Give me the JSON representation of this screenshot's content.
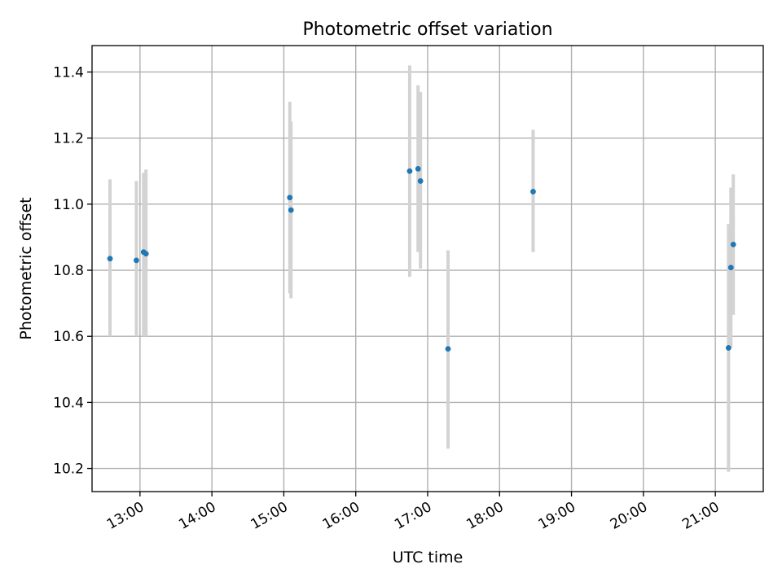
{
  "chart_data": {
    "type": "scatter",
    "title": "Photometric offset variation",
    "xlabel": "UTC time",
    "ylabel": "Photometric offset",
    "xlim": [
      "12:20",
      "21:40"
    ],
    "ylim": [
      10.13,
      11.48
    ],
    "x_tick_labels": [
      "13:00",
      "14:00",
      "15:00",
      "16:00",
      "17:00",
      "18:00",
      "19:00",
      "20:00",
      "21:00"
    ],
    "y_tick_labels": [
      "10.2",
      "10.4",
      "10.6",
      "10.8",
      "11.0",
      "11.2",
      "11.4"
    ],
    "grid": true,
    "colors": {
      "points": "#1f77b4",
      "error_bars": "#d3d3d3",
      "grid": "#b0b0b0"
    },
    "points": [
      {
        "x": "12:35",
        "y": 10.835,
        "err_low": 10.6,
        "err_high": 11.075
      },
      {
        "x": "12:57",
        "y": 10.83,
        "err_low": 10.6,
        "err_high": 11.07
      },
      {
        "x": "13:03",
        "y": 10.855,
        "err_low": 10.6,
        "err_high": 11.095
      },
      {
        "x": "13:05",
        "y": 10.85,
        "err_low": 10.6,
        "err_high": 11.105
      },
      {
        "x": "15:05",
        "y": 11.02,
        "err_low": 10.73,
        "err_high": 11.31
      },
      {
        "x": "15:06",
        "y": 10.982,
        "err_low": 10.715,
        "err_high": 11.25
      },
      {
        "x": "16:45",
        "y": 11.1,
        "err_low": 10.78,
        "err_high": 11.42
      },
      {
        "x": "16:52",
        "y": 11.107,
        "err_low": 10.855,
        "err_high": 11.36
      },
      {
        "x": "16:54",
        "y": 11.07,
        "err_low": 10.805,
        "err_high": 11.34
      },
      {
        "x": "17:17",
        "y": 10.562,
        "err_low": 10.26,
        "err_high": 10.86
      },
      {
        "x": "18:28",
        "y": 11.038,
        "err_low": 10.855,
        "err_high": 11.225
      },
      {
        "x": "21:11",
        "y": 10.565,
        "err_low": 10.19,
        "err_high": 10.94
      },
      {
        "x": "21:13",
        "y": 10.808,
        "err_low": 10.565,
        "err_high": 11.05
      },
      {
        "x": "21:15",
        "y": 10.878,
        "err_low": 10.665,
        "err_high": 11.09
      }
    ]
  }
}
